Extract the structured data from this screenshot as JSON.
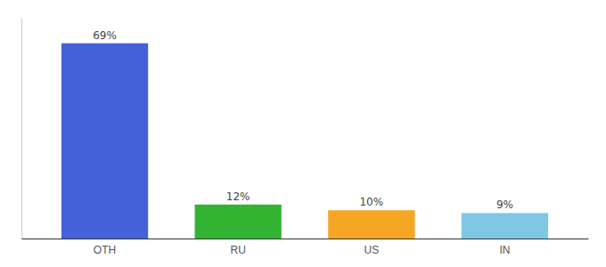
{
  "chart_data": {
    "type": "bar",
    "categories": [
      "OTH",
      "RU",
      "US",
      "IN"
    ],
    "values": [
      69,
      12,
      10,
      9
    ],
    "value_labels": [
      "69%",
      "12%",
      "10%",
      "9%"
    ],
    "colors": [
      "#4361d8",
      "#32b332",
      "#f5a623",
      "#7ec8e3"
    ],
    "ylim": [
      0,
      78
    ],
    "grid": false,
    "data_labels": true,
    "tick_labels": "x"
  }
}
